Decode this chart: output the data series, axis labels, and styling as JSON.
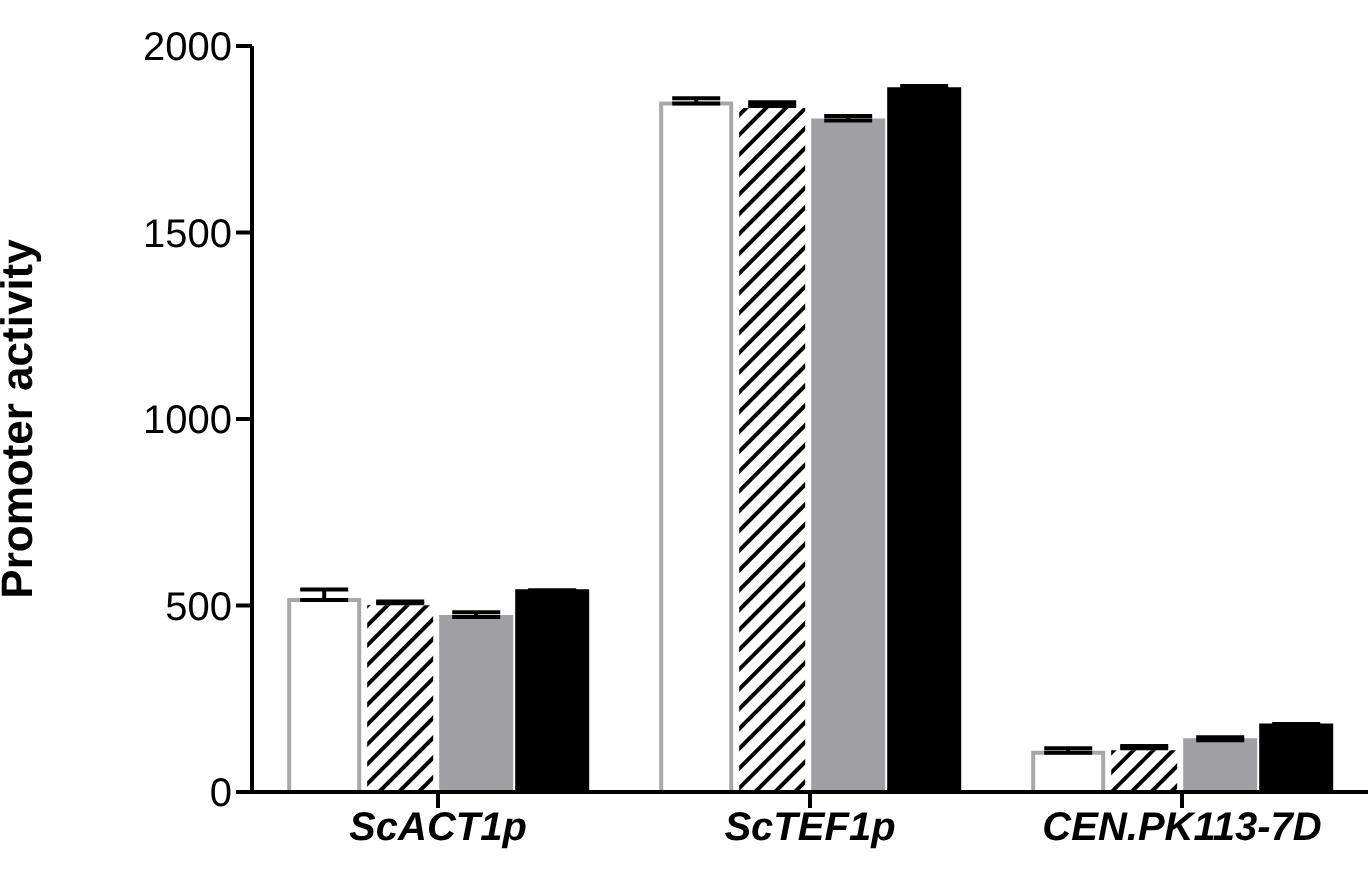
{
  "chart_data": {
    "type": "bar",
    "ylabel": "Promoter activity",
    "categories": [
      "ScACT1p",
      "ScTEF1p",
      "CEN.PK113-7D"
    ],
    "series": [
      {
        "color": "#ffffff",
        "values": [
          515,
          1846,
          105
        ],
        "errors": [
          28,
          14,
          12
        ]
      },
      {
        "color": "#ffffff",
        "values": [
          506,
          1839,
          117
        ],
        "errors": [
          5,
          10,
          6
        ]
      },
      {
        "color": "#a0a0a4",
        "values": [
          469,
          1800,
          139
        ],
        "errors": [
          13,
          12,
          8
        ]
      },
      {
        "color": "#000000",
        "values": [
          538,
          1884,
          178
        ],
        "errors": [
          3,
          9,
          4
        ]
      }
    ],
    "ylim": [
      0,
      2000
    ],
    "yticks": [
      0,
      500,
      1000,
      1500,
      2000
    ],
    "grid": false,
    "legend": false
  }
}
